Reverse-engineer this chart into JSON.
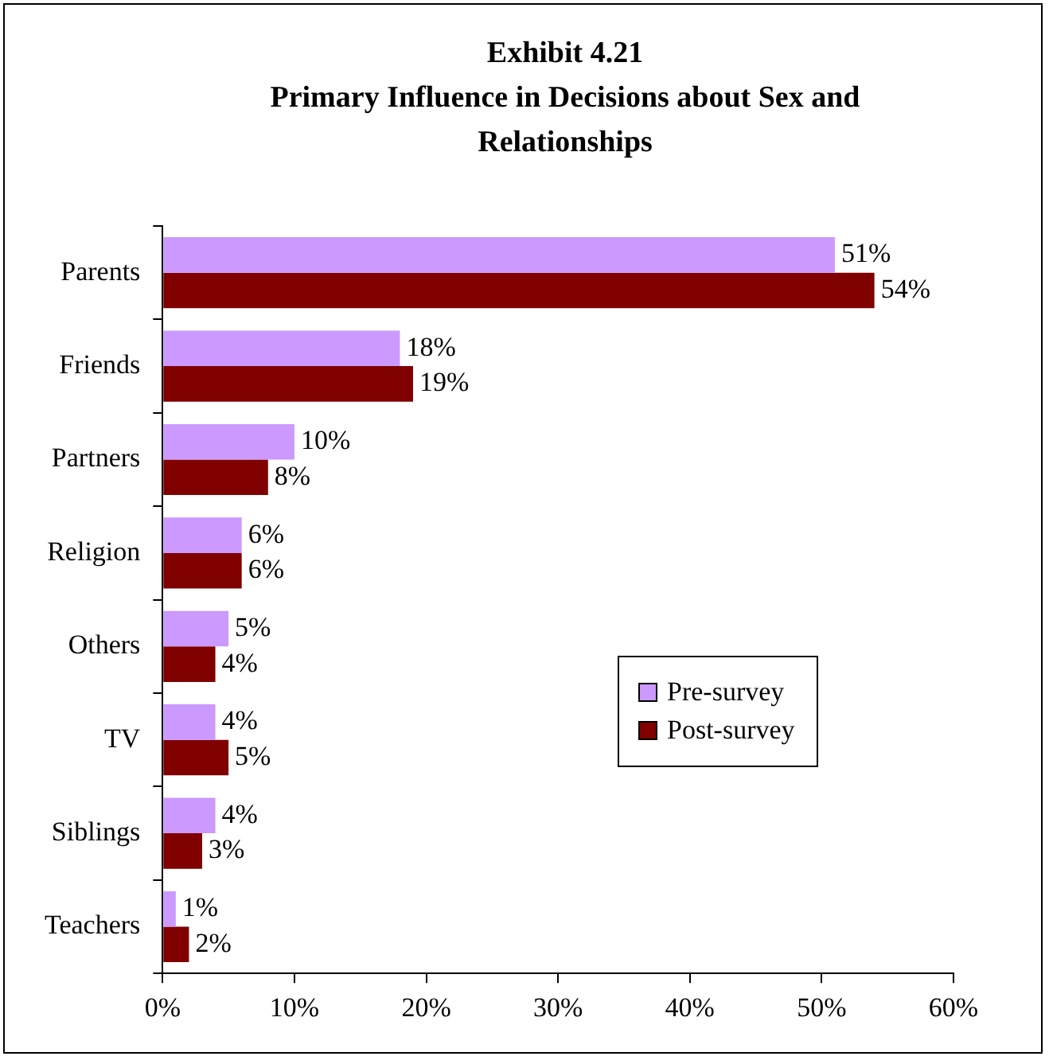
{
  "chart_data": {
    "type": "bar",
    "orientation": "horizontal",
    "title": "Exhibit 4.21",
    "subtitle": "Primary Influence in Decisions about Sex and Relationships",
    "categories": [
      "Parents",
      "Friends",
      "Partners",
      "Religion",
      "Others",
      "TV",
      "Siblings",
      "Teachers"
    ],
    "series": [
      {
        "name": "Pre-survey",
        "color": "#cc99ff",
        "values": [
          51,
          18,
          10,
          6,
          5,
          4,
          4,
          1
        ],
        "value_labels": [
          "51%",
          "18%",
          "10%",
          "6%",
          "5%",
          "4%",
          "4%",
          "1%"
        ]
      },
      {
        "name": "Post-survey",
        "color": "#800000",
        "values": [
          54,
          19,
          8,
          6,
          4,
          5,
          3,
          2
        ],
        "value_labels": [
          "54%",
          "19%",
          "8%",
          "6%",
          "4%",
          "5%",
          "3%",
          "2%"
        ]
      }
    ],
    "xlim": [
      0,
      60
    ],
    "xticks": [
      {
        "value": 0,
        "label": "0%"
      },
      {
        "value": 10,
        "label": "10%"
      },
      {
        "value": 20,
        "label": "20%"
      },
      {
        "value": 30,
        "label": "30%"
      },
      {
        "value": 40,
        "label": "40%"
      },
      {
        "value": 50,
        "label": "50%"
      },
      {
        "value": 60,
        "label": "60%"
      }
    ],
    "grid": false,
    "legend": "right"
  }
}
